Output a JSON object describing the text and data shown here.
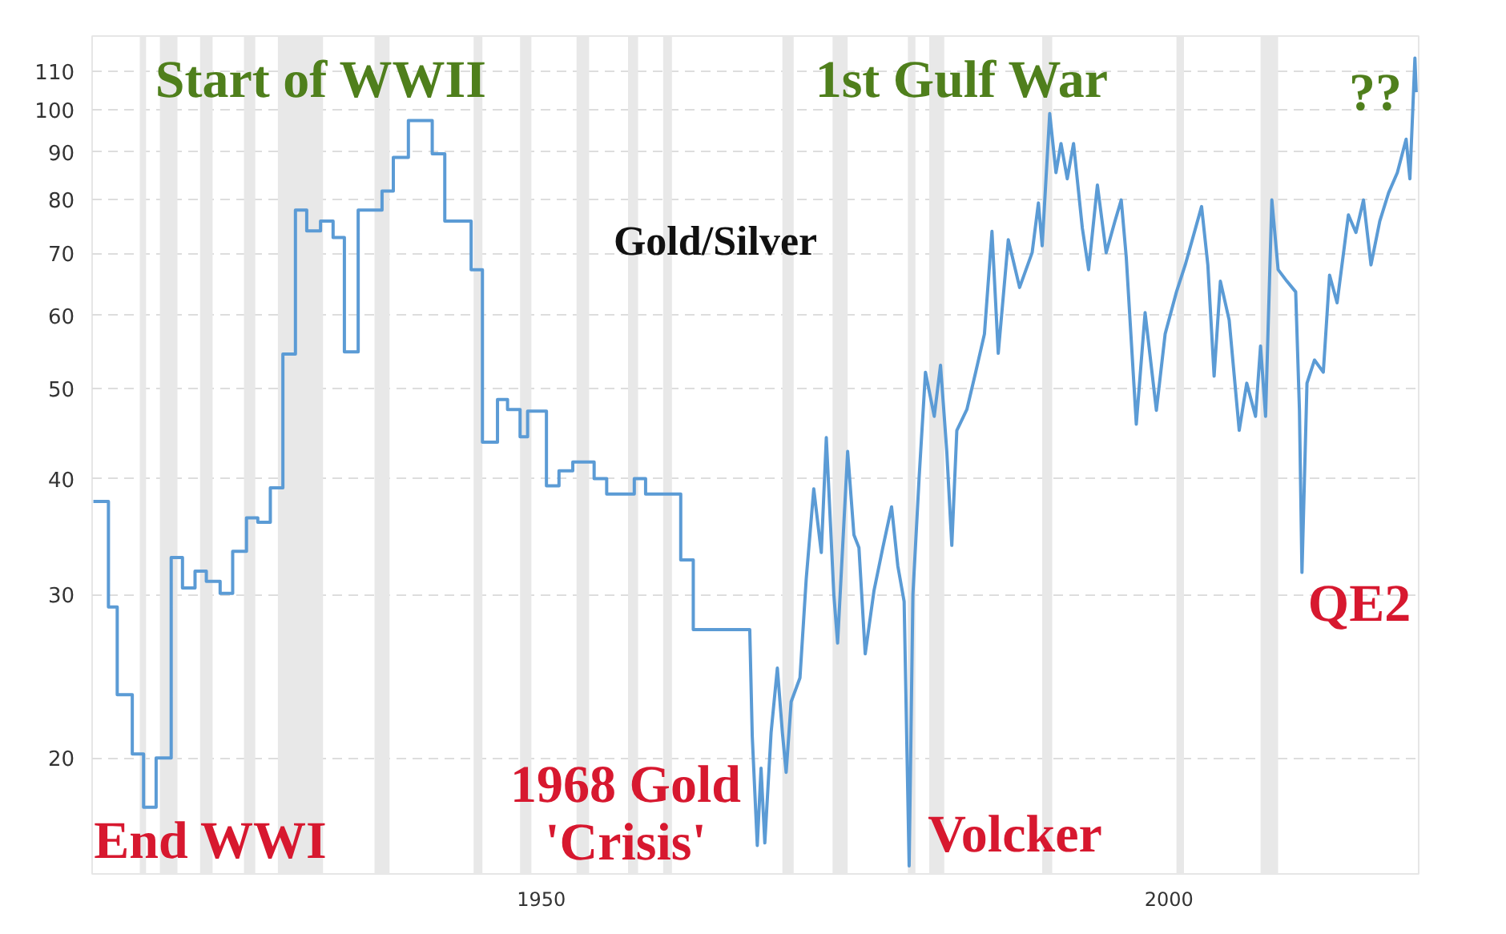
{
  "chart_data": {
    "type": "line",
    "title": "Gold/Silver",
    "x": [
      1914.3,
      1915.5,
      1915.5,
      1916.2,
      1916.2,
      1917.4,
      1917.4,
      1918.3,
      1918.3,
      1919.3,
      1919.3,
      1920.5,
      1920.5,
      1921.4,
      1921.4,
      1922.4,
      1922.4,
      1923.3,
      1923.3,
      1924.4,
      1924.4,
      1925.4,
      1925.4,
      1926.5,
      1926.5,
      1927.4,
      1927.4,
      1928.4,
      1928.4,
      1929.4,
      1929.4,
      1930.4,
      1930.4,
      1931.3,
      1931.3,
      1932.4,
      1932.4,
      1933.4,
      1933.4,
      1934.3,
      1934.3,
      1935.4,
      1935.4,
      1937.3,
      1937.3,
      1938.2,
      1938.2,
      1939.4,
      1939.4,
      1941.3,
      1941.3,
      1942.3,
      1942.3,
      1944.4,
      1944.4,
      1945.3,
      1945.3,
      1946.5,
      1946.5,
      1947.3,
      1947.3,
      1948.3,
      1948.3,
      1948.9,
      1948.9,
      1950.4,
      1950.4,
      1951.4,
      1951.4,
      1952.5,
      1952.5,
      1954.2,
      1954.2,
      1955.2,
      1955.2,
      1957.4,
      1957.4,
      1958.3,
      1958.3,
      1961.1,
      1961.1,
      1962.1,
      1962.1,
      1966.6,
      1966.8,
      1967.2,
      1967.5,
      1967.8,
      1968.3,
      1968.8,
      1969.2,
      1969.5,
      1969.9,
      1970.6,
      1971.1,
      1971.7,
      1972.3,
      1972.7,
      1973.3,
      1973.6,
      1974.4,
      1974.9,
      1975.3,
      1975.8,
      1976.5,
      1977.2,
      1977.9,
      1978.4,
      1978.9,
      1979.3,
      1979.6,
      1980.1,
      1980.6,
      1981.3,
      1981.8,
      1982.3,
      1982.7,
      1983.1,
      1983.9,
      1984.6,
      1985.3,
      1985.9,
      1986.4,
      1987.2,
      1988.1,
      1989.1,
      1989.6,
      1989.9,
      1990.5,
      1991.0,
      1991.4,
      1991.9,
      1992.4,
      1993.1,
      1993.6,
      1994.3,
      1995.0,
      1995.7,
      1996.2,
      1996.6,
      1997.4,
      1998.1,
      1999.0,
      1999.7,
      2000.6,
      2001.3,
      2002.6,
      2003.1,
      2003.6,
      2004.1,
      2004.8,
      2005.6,
      2006.2,
      2006.9,
      2007.3,
      2007.7,
      2008.2,
      2008.7,
      2009.4,
      2010.1,
      2010.4,
      2010.6,
      2011.0,
      2011.6,
      2012.3,
      2012.8,
      2013.4,
      2014.3,
      2014.9,
      2015.5,
      2016.1,
      2016.8,
      2017.5,
      2018.2,
      2018.9,
      2019.2,
      2019.6,
      2019.7
    ],
    "series": [
      {
        "color": "#5b9bd5",
        "values": [
          37.8,
          37.8,
          29.1,
          29.1,
          23.4,
          23.4,
          20.2,
          20.2,
          17.7,
          17.7,
          20,
          20,
          32.9,
          32.9,
          30.5,
          30.5,
          31.8,
          31.8,
          31,
          31,
          30.1,
          30.1,
          33.4,
          33.4,
          36.3,
          36.3,
          35.9,
          35.9,
          39.1,
          39.1,
          54.5,
          54.5,
          77.9,
          77.9,
          74,
          74,
          75.8,
          75.8,
          72.8,
          72.8,
          54.8,
          54.8,
          77.9,
          77.9,
          81.7,
          81.7,
          88.8,
          88.8,
          97.3,
          97.3,
          89.6,
          89.6,
          75.8,
          75.8,
          67.2,
          67.2,
          43.8,
          43.8,
          48.7,
          48.7,
          47.5,
          47.5,
          44.4,
          44.4,
          47.3,
          47.3,
          39.3,
          39.3,
          40.8,
          40.8,
          41.7,
          41.7,
          40,
          40,
          38.5,
          38.5,
          40,
          40,
          38.5,
          38.5,
          32.7,
          32.7,
          27.5,
          27.5,
          21.1,
          16.1,
          19.5,
          16.2,
          21.3,
          25.0,
          21.3,
          19.3,
          23,
          24.4,
          31.2,
          39.0,
          33.3,
          44.3,
          30,
          26.6,
          42.8,
          34.8,
          33.7,
          25.9,
          30.3,
          33.7,
          37.3,
          32.2,
          29.5,
          15.3,
          30,
          40.2,
          52.1,
          46.7,
          53,
          42.8,
          33.9,
          45.1,
          47.5,
          52.1,
          57.3,
          73.9,
          54.6,
          72.4,
          64.3,
          70.1,
          79.3,
          71.3,
          99,
          85.5,
          91.9,
          84.2,
          91.9,
          74.5,
          67.2,
          82.9,
          70.1,
          75.8,
          79.9,
          69.3,
          45.8,
          60.4,
          47.4,
          57.3,
          63.6,
          68.0,
          78.6,
          68,
          51.6,
          65.3,
          59.3,
          45.1,
          50.7,
          46.7,
          55.6,
          46.7,
          79.9,
          67.2,
          65.3,
          63.6,
          47.4,
          31.7,
          50.7,
          53.7,
          52.1,
          66.3,
          61.9,
          77,
          73.7,
          79.9,
          68,
          75.8,
          81.3,
          85.5,
          92.9,
          84.2,
          113.6,
          104.4
        ]
      }
    ],
    "log": "y",
    "xlim": [
      1914.2,
      2019.9
    ],
    "xticks": [
      1950,
      2000
    ],
    "ylim": [
      15,
      120
    ],
    "yticks": [
      20,
      30,
      40,
      50,
      60,
      70,
      80,
      90,
      100,
      110
    ],
    "grid": "y",
    "line_style": "solid",
    "bands": [
      {
        "axis": "x",
        "from": 1918.0,
        "to": 1918.5,
        "color": "#e8e8e8"
      },
      {
        "axis": "x",
        "from": 1919.6,
        "to": 1921.0,
        "color": "#e8e8e8"
      },
      {
        "axis": "x",
        "from": 1922.8,
        "to": 1923.8,
        "color": "#e8e8e8"
      },
      {
        "axis": "x",
        "from": 1926.3,
        "to": 1927.2,
        "color": "#e8e8e8"
      },
      {
        "axis": "x",
        "from": 1929.0,
        "to": 1932.6,
        "color": "#e8e8e8"
      },
      {
        "axis": "x",
        "from": 1936.7,
        "to": 1937.9,
        "color": "#e8e8e8"
      },
      {
        "axis": "x",
        "from": 1944.6,
        "to": 1945.3,
        "color": "#e8e8e8"
      },
      {
        "axis": "x",
        "from": 1948.3,
        "to": 1949.2,
        "color": "#e8e8e8"
      },
      {
        "axis": "x",
        "from": 1952.8,
        "to": 1953.8,
        "color": "#e8e8e8"
      },
      {
        "axis": "x",
        "from": 1956.9,
        "to": 1957.7,
        "color": "#e8e8e8"
      },
      {
        "axis": "x",
        "from": 1959.7,
        "to": 1960.4,
        "color": "#e8e8e8"
      },
      {
        "axis": "x",
        "from": 1969.2,
        "to": 1970.1,
        "color": "#e8e8e8"
      },
      {
        "axis": "x",
        "from": 1973.2,
        "to": 1974.4,
        "color": "#e8e8e8"
      },
      {
        "axis": "x",
        "from": 1979.2,
        "to": 1979.8,
        "color": "#e8e8e8"
      },
      {
        "axis": "x",
        "from": 1980.9,
        "to": 1982.1,
        "color": "#e8e8e8"
      },
      {
        "axis": "x",
        "from": 1989.9,
        "to": 1990.7,
        "color": "#e8e8e8"
      },
      {
        "axis": "x",
        "from": 2000.6,
        "to": 2001.2,
        "color": "#e8e8e8"
      },
      {
        "axis": "x",
        "from": 2007.3,
        "to": 2008.7,
        "color": "#e8e8e8"
      }
    ],
    "annotations": [
      "Start of WWII",
      "1st Gulf War",
      "??",
      "End WWI",
      "1968 Gold\n'Crisis'",
      "Volcker",
      "QE2"
    ]
  }
}
